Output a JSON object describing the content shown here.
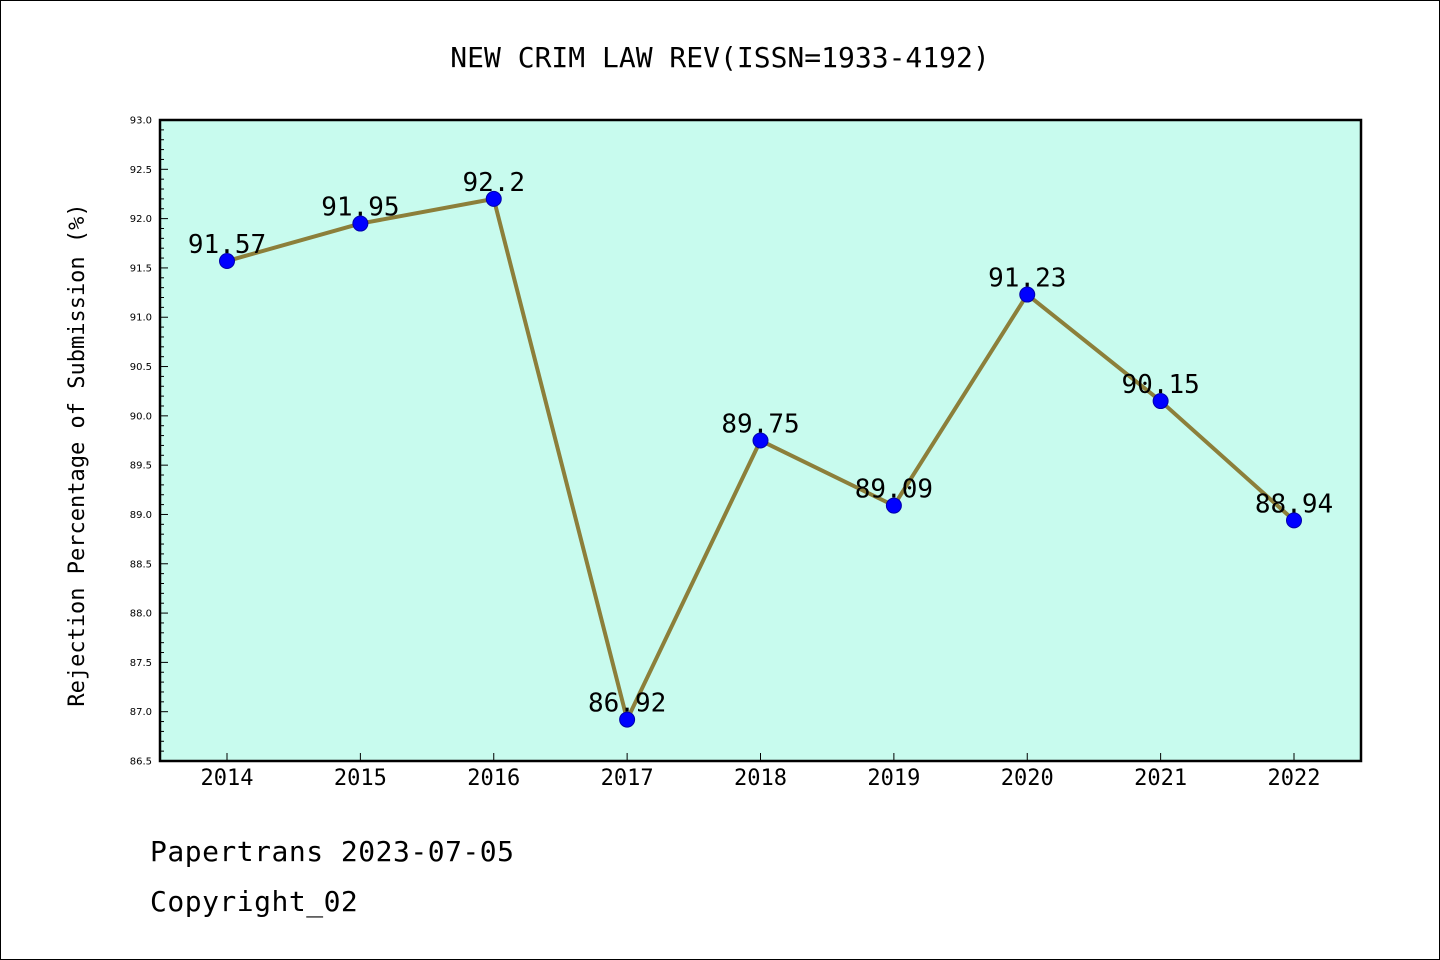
{
  "chart_data": {
    "type": "line",
    "title": "NEW CRIM LAW REV(ISSN=1933-4192)",
    "xlabel": "",
    "ylabel": "Rejection Percentage of Submission (%)",
    "categories": [
      "2014",
      "2015",
      "2016",
      "2017",
      "2018",
      "2019",
      "2020",
      "2021",
      "2022"
    ],
    "series": [
      {
        "values": [
          91.57,
          91.95,
          92.2,
          86.92,
          89.75,
          89.09,
          91.23,
          90.15,
          88.94
        ],
        "labels": [
          "91.57",
          "91.95",
          "92.2",
          "86.92",
          "89.75",
          "89.09",
          "91.23",
          "90.15",
          "88.94"
        ]
      }
    ],
    "ylim": [
      86.5,
      93.0
    ],
    "yticks": [
      "86.5",
      "87.0",
      "87.5",
      "88.0",
      "88.5",
      "89.0",
      "89.5",
      "90.0",
      "90.5",
      "91.0",
      "91.5",
      "92.0",
      "92.5",
      "93.0"
    ],
    "grid": false,
    "legend": "none",
    "colors": {
      "plot_background": "#c8fbee",
      "line": "#8c7f3a",
      "marker": "#0000ff"
    }
  },
  "footer": {
    "line1": "Papertrans 2023-07-05",
    "line2": "Copyright_02"
  }
}
